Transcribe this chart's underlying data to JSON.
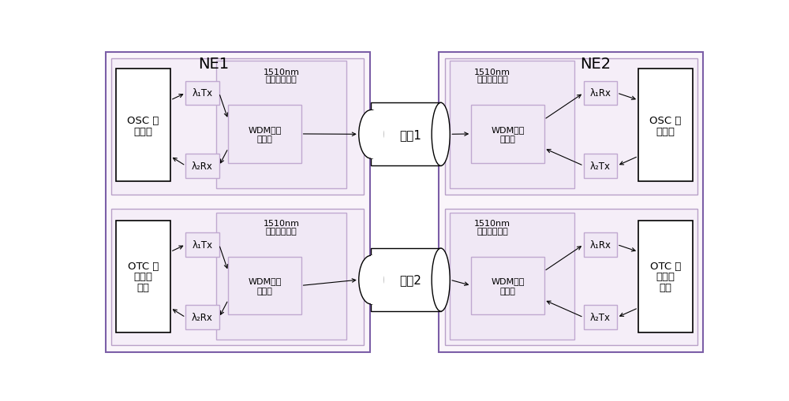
{
  "bg_color": "#ffffff",
  "ne1_label": "NE1",
  "ne2_label": "NE2",
  "fiber_label_1": "光杈1",
  "fiber_label_2": "光杈2",
  "coupling_label_top": "1510nm",
  "coupling_label_bot": "双向耦合模块",
  "wdm_label_1": "WDM双向",
  "wdm_label_2": "耦合器",
  "lambda1_tx": "λ₁Tx",
  "lambda2_rx": "λ₂Rx",
  "lambda1_rx": "λ₁Rx",
  "lambda2_tx": "λ₂Tx",
  "osc_label_1": "OSC 处",
  "osc_label_2": "理单元",
  "otc_label_1": "OTC 定",
  "otc_label_2": "时处理",
  "otc_label_3": "单元",
  "outer_edge": "#7b5ea7",
  "inner_edge": "#b8a0c8",
  "lambda_edge": "#c0a8d0",
  "black": "#000000",
  "white": "#ffffff",
  "outer_fill": "#faf5fa",
  "inner_fill": "#f5eef8",
  "lambda_fill": "#f0e8f5",
  "osc_fill": "#ffffff",
  "gray_text": "#333333"
}
